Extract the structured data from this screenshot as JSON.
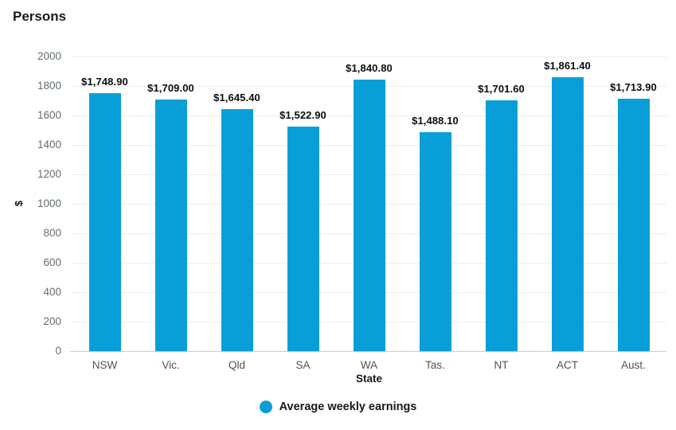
{
  "title": "Persons",
  "colors": {
    "bar": "#0a9ed9",
    "gridline": "#ebedef",
    "axis_line": "#bfcfd9"
  },
  "chart_data": {
    "type": "bar",
    "title": "Persons",
    "categories": [
      "NSW",
      "Vic.",
      "Qld",
      "SA",
      "WA",
      "Tas.",
      "NT",
      "ACT",
      "Aust."
    ],
    "values": [
      1748.9,
      1709.0,
      1645.4,
      1522.9,
      1840.8,
      1488.1,
      1701.6,
      1861.4,
      1713.9
    ],
    "data_labels": [
      "$1,748.90",
      "$1,709.00",
      "$1,645.40",
      "$1,522.90",
      "$1,840.80",
      "$1,488.10",
      "$1,701.60",
      "$1,861.40",
      "$1,713.90"
    ],
    "xlabel": "State",
    "ylabel": "$",
    "ylim": [
      0,
      2000
    ],
    "ytick_interval": 200,
    "yticks": [
      0,
      200,
      400,
      600,
      800,
      1000,
      1200,
      1400,
      1600,
      1800,
      2000
    ],
    "grid": "horizontal",
    "legend": {
      "position": "bottom",
      "entries": [
        "Average weekly earnings"
      ]
    }
  }
}
